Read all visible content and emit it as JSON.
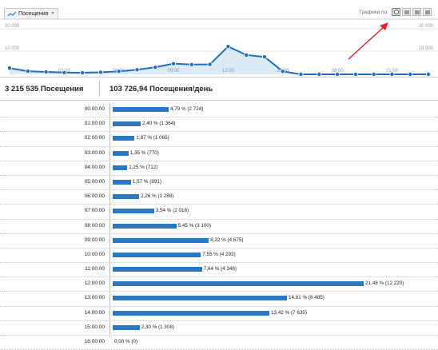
{
  "toolbar": {
    "metric_label": "Посещения",
    "chart_type_label": "Графики по:",
    "chart_type_icons": [
      "clock-icon",
      "table-icon",
      "list-icon",
      "grid-icon"
    ],
    "active_icon": "clock-icon"
  },
  "annotation": {
    "arrow_color": "#e0262a"
  },
  "chart_data": [
    {
      "type": "line",
      "x": [
        "00:00",
        "01:00",
        "02:00",
        "03:00",
        "04:00",
        "05:00",
        "06:00",
        "07:00",
        "08:00",
        "09:00",
        "10:00",
        "11:00",
        "12:00",
        "13:00",
        "14:00",
        "15:00",
        "16:00",
        "17:00",
        "18:00",
        "19:00",
        "20:00",
        "21:00",
        "22:00",
        "23:00"
      ],
      "values": [
        2724,
        1364,
        1065,
        770,
        712,
        891,
        1288,
        2016,
        3100,
        4675,
        4293,
        4348,
        12220,
        8485,
        7635,
        1308,
        0,
        0,
        0,
        0,
        0,
        0,
        0,
        0
      ],
      "tick_labels": [
        "03:00",
        "06:00",
        "09:00",
        "12:00",
        "15:00",
        "18:00",
        "21:00"
      ],
      "ylim": [
        0,
        20000
      ],
      "y_ticks_left": [
        "20 000",
        "10 000"
      ],
      "y_ticks_right": [
        "20 000",
        "10 000"
      ],
      "line_color": "#1f6fbd",
      "fill_color": "#dceaf6"
    },
    {
      "type": "bar",
      "orientation": "horizontal",
      "categories": [
        "00:00:00",
        "01:00:00",
        "02:00:00",
        "03:00:00",
        "04:00:00",
        "05:00:00",
        "06:00:00",
        "07:00:00",
        "08:00:00",
        "09:00:00",
        "10:00:00",
        "11:00:00",
        "12:00:00",
        "13:00:00",
        "14:00:00",
        "15:00:00",
        "16:00:00"
      ],
      "values": [
        2724,
        1364,
        1065,
        770,
        712,
        891,
        1288,
        2016,
        3100,
        4675,
        4293,
        4348,
        12220,
        8485,
        7635,
        1308,
        0
      ],
      "labels": [
        "4,79 % (2 724)",
        "2,40 % (1 364)",
        "1,87 % (1 065)",
        "1,35 % (770)",
        "1,25 % (712)",
        "1,57 % (891)",
        "2,26 % (1 288)",
        "3,54 % (2 016)",
        "5,45 % (3 100)",
        "8,22 % (4 675)",
        "7,55 % (4 293)",
        "7,64 % (4 348)",
        "21,48 % (12 220)",
        "14,91 % (8 485)",
        "13,42 % (7 635)",
        "2,30 % (1 308)",
        "0,00 % (0)"
      ],
      "bar_color": "#2a77c8"
    }
  ],
  "stats": {
    "total": "3 215 535 Посещения",
    "per_day": "103 726,94 Посещения/день"
  }
}
